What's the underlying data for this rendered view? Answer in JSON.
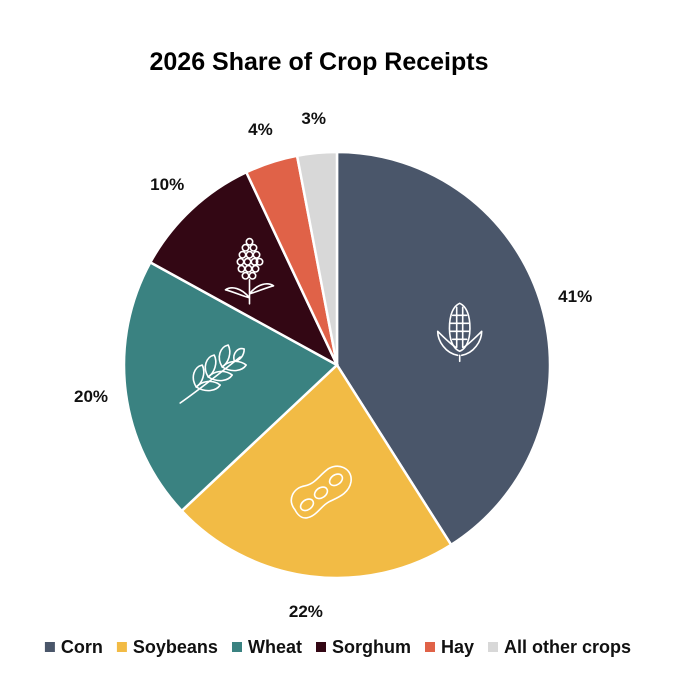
{
  "chart_data": {
    "type": "pie",
    "title": "2026 Share of Crop Receipts",
    "legend_position": "bottom",
    "slices": [
      {
        "name": "Corn",
        "value": 41,
        "label": "41%",
        "color": "#4a566a",
        "icon": "corn-icon"
      },
      {
        "name": "Soybeans",
        "value": 22,
        "label": "22%",
        "color": "#f2bb45",
        "icon": "soybean-icon"
      },
      {
        "name": "Wheat",
        "value": 20,
        "label": "20%",
        "color": "#3a8281",
        "icon": "wheat-icon"
      },
      {
        "name": "Sorghum",
        "value": 10,
        "label": "10%",
        "color": "#330714",
        "icon": "sorghum-icon"
      },
      {
        "name": "Hay",
        "value": 4,
        "label": "4%",
        "color": "#e06248",
        "icon": ""
      },
      {
        "name": "All other crops",
        "value": 3,
        "label": "3%",
        "color": "#d8d8d8",
        "icon": ""
      }
    ]
  }
}
